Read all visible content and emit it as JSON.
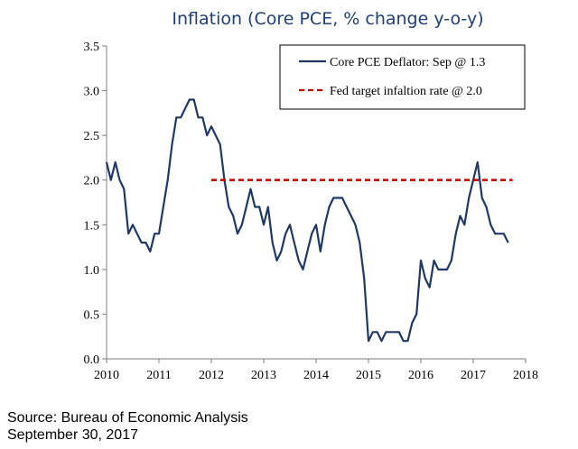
{
  "chart_data": {
    "type": "line",
    "title": "Inflation (Core PCE, % change y-o-y)",
    "xlabel": "",
    "ylabel": "",
    "xlim": [
      2010,
      2018
    ],
    "ylim": [
      0.0,
      3.5
    ],
    "x_ticks": [
      "2010",
      "2011",
      "2012",
      "2013",
      "2014",
      "2015",
      "2016",
      "2017",
      "2018"
    ],
    "y_ticks": [
      "0.0",
      "0.5",
      "1.0",
      "1.5",
      "2.0",
      "2.5",
      "3.0",
      "3.5"
    ],
    "legend_position": "top-right",
    "series": [
      {
        "name": "Core PCE Deflator: Sep @ 1.3",
        "color": "#1f3864",
        "style": "solid",
        "x": [
          2010.0,
          2010.083,
          2010.167,
          2010.25,
          2010.333,
          2010.417,
          2010.5,
          2010.583,
          2010.667,
          2010.75,
          2010.833,
          2010.917,
          2011.0,
          2011.083,
          2011.167,
          2011.25,
          2011.333,
          2011.417,
          2011.5,
          2011.583,
          2011.667,
          2011.75,
          2011.833,
          2011.917,
          2012.0,
          2012.083,
          2012.167,
          2012.25,
          2012.333,
          2012.417,
          2012.5,
          2012.583,
          2012.667,
          2012.75,
          2012.833,
          2012.917,
          2013.0,
          2013.083,
          2013.167,
          2013.25,
          2013.333,
          2013.417,
          2013.5,
          2013.583,
          2013.667,
          2013.75,
          2013.833,
          2013.917,
          2014.0,
          2014.083,
          2014.167,
          2014.25,
          2014.333,
          2014.417,
          2014.5,
          2014.583,
          2014.667,
          2014.75,
          2014.833,
          2014.917,
          2015.0,
          2015.083,
          2015.167,
          2015.25,
          2015.333,
          2015.417,
          2015.5,
          2015.583,
          2015.667,
          2015.75,
          2015.833,
          2015.917,
          2016.0,
          2016.083,
          2016.167,
          2016.25,
          2016.333,
          2016.417,
          2016.5,
          2016.583,
          2016.667,
          2016.75,
          2016.833,
          2016.917,
          2017.0,
          2017.083,
          2017.167,
          2017.25,
          2017.333,
          2017.417,
          2017.5,
          2017.583,
          2017.667
        ],
        "values": [
          2.2,
          2.0,
          2.2,
          2.0,
          1.9,
          1.4,
          1.5,
          1.4,
          1.3,
          1.3,
          1.2,
          1.4,
          1.4,
          1.7,
          2.0,
          2.4,
          2.7,
          2.7,
          2.8,
          2.9,
          2.9,
          2.7,
          2.7,
          2.5,
          2.6,
          2.5,
          2.4,
          2.0,
          1.7,
          1.6,
          1.4,
          1.5,
          1.7,
          1.9,
          1.7,
          1.7,
          1.5,
          1.7,
          1.3,
          1.1,
          1.2,
          1.4,
          1.5,
          1.3,
          1.1,
          1.0,
          1.2,
          1.4,
          1.5,
          1.2,
          1.5,
          1.7,
          1.8,
          1.8,
          1.8,
          1.7,
          1.6,
          1.5,
          1.3,
          0.9,
          0.2,
          0.3,
          0.3,
          0.2,
          0.3,
          0.3,
          0.3,
          0.3,
          0.2,
          0.2,
          0.4,
          0.5,
          1.1,
          0.9,
          0.8,
          1.1,
          1.0,
          1.0,
          1.0,
          1.1,
          1.4,
          1.6,
          1.5,
          1.8,
          2.0,
          2.2,
          1.8,
          1.7,
          1.5,
          1.4,
          1.4,
          1.4,
          1.3
        ]
      },
      {
        "name": "Fed target infaltion rate @ 2.0",
        "color": "#c00000",
        "style": "dashed",
        "x": [
          2012.0,
          2017.75
        ],
        "values": [
          2.0,
          2.0
        ]
      }
    ]
  },
  "footer": {
    "source": "Source: Bureau of Economic Analysis",
    "date": "September 30, 2017"
  }
}
